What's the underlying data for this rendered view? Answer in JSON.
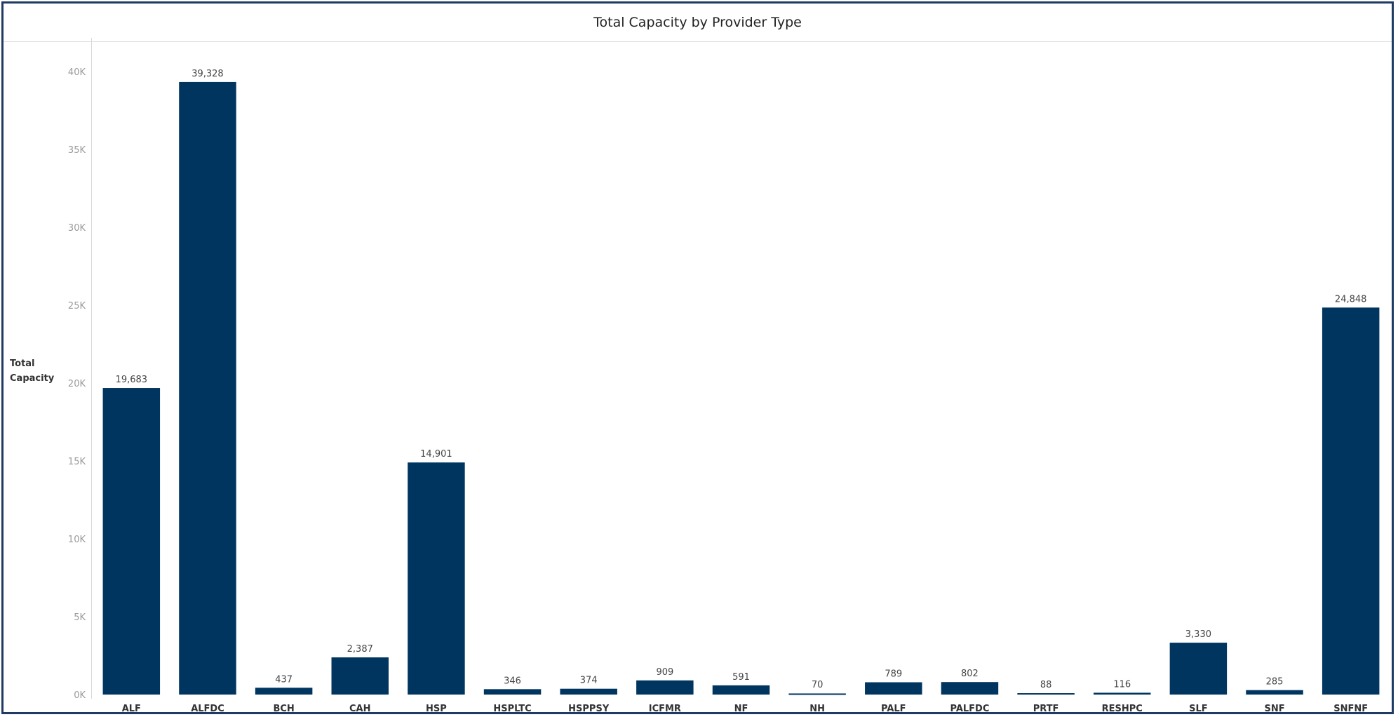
{
  "chart_data": {
    "type": "bar",
    "title": "Total Capacity by Provider Type",
    "xlabel": "",
    "ylabel": "Total Capacity",
    "ylim": [
      0,
      42000
    ],
    "yticks": [
      0,
      5000,
      10000,
      15000,
      20000,
      25000,
      30000,
      35000,
      40000
    ],
    "ytick_labels": [
      "0K",
      "5K",
      "10K",
      "15K",
      "20K",
      "25K",
      "30K",
      "35K",
      "40K"
    ],
    "grid": false,
    "bar_color": "#003560",
    "categories": [
      "ALF",
      "ALFDC",
      "BCH",
      "CAH",
      "HSP",
      "HSPLTC",
      "HSPPSY",
      "ICFMR",
      "NF",
      "NH",
      "PALF",
      "PALFDC",
      "PRTF",
      "RESHPC",
      "SLF",
      "SNF",
      "SNFNF"
    ],
    "values": [
      19683,
      39328,
      437,
      2387,
      14901,
      346,
      374,
      909,
      591,
      70,
      789,
      802,
      88,
      116,
      3330,
      285,
      24848
    ],
    "value_labels": [
      "19,683",
      "39,328",
      "437",
      "2,387",
      "14,901",
      "346",
      "374",
      "909",
      "591",
      "70",
      "789",
      "802",
      "88",
      "116",
      "3,330",
      "285",
      "24,848"
    ]
  }
}
